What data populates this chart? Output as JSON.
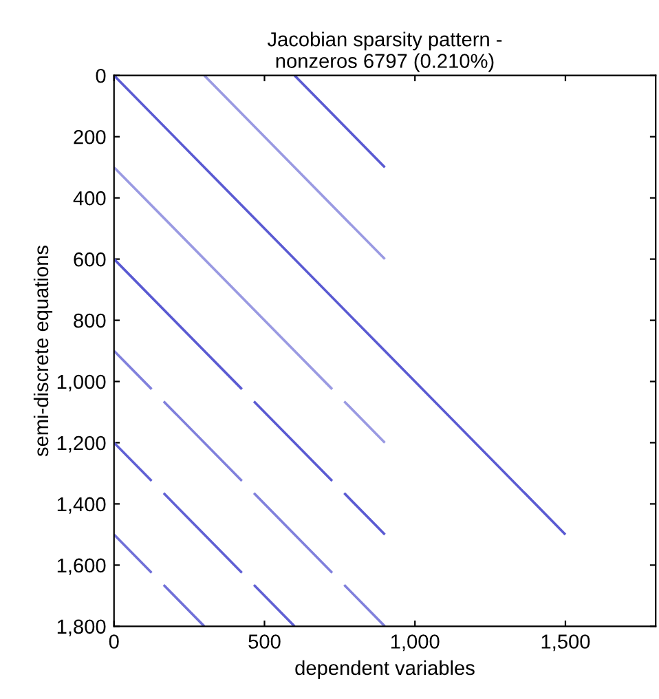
{
  "chart_data": {
    "type": "line",
    "title": "Jacobian sparsity pattern -\nnonzeros 6797 (0.210%)",
    "xlabel": "dependent variables",
    "ylabel": "semi-discrete equations",
    "xlim": [
      0,
      1800
    ],
    "ylim": [
      1800,
      0
    ],
    "xticks": [
      0,
      500,
      {
        "value": 1000,
        "label": "1,000"
      },
      {
        "value": 1500,
        "label": "1,500"
      }
    ],
    "yticks": [
      0,
      200,
      400,
      600,
      800,
      {
        "value": 1000,
        "label": "1,000"
      },
      {
        "value": 1200,
        "label": "1,200"
      },
      {
        "value": 1400,
        "label": "1,400"
      },
      {
        "value": 1600,
        "label": "1,600"
      },
      {
        "value": 1800,
        "label": "1,800"
      }
    ],
    "grid": false,
    "legend": false,
    "marker": "none",
    "line_style": "solid",
    "series": [
      {
        "color": "#5a5ad2",
        "x": [
          0,
          1500
        ],
        "values": [
          0,
          1500
        ]
      },
      {
        "color": "#9a9ae2",
        "x": [
          300,
          900
        ],
        "values": [
          0,
          600
        ]
      },
      {
        "color": "#5a5ad2",
        "x": [
          600,
          900
        ],
        "values": [
          0,
          300
        ]
      },
      {
        "color": "#9a9ae2",
        "x": [
          0,
          725
        ],
        "values": [
          300,
          1025
        ]
      },
      {
        "color": "#9a9ae2",
        "x": [
          765,
          900
        ],
        "values": [
          1065,
          1200
        ]
      },
      {
        "color": "#5a5ad2",
        "x": [
          0,
          425
        ],
        "values": [
          600,
          1025
        ]
      },
      {
        "color": "#5a5ad2",
        "x": [
          465,
          725
        ],
        "values": [
          1065,
          1325
        ]
      },
      {
        "color": "#5a5ad2",
        "x": [
          765,
          900
        ],
        "values": [
          1365,
          1500
        ]
      },
      {
        "color": "#8080dc",
        "x": [
          0,
          125
        ],
        "values": [
          900,
          1025
        ]
      },
      {
        "color": "#8080dc",
        "x": [
          165,
          425
        ],
        "values": [
          1065,
          1325
        ]
      },
      {
        "color": "#8080dc",
        "x": [
          465,
          725
        ],
        "values": [
          1365,
          1625
        ]
      },
      {
        "color": "#8080dc",
        "x": [
          765,
          900
        ],
        "values": [
          1665,
          1800
        ]
      },
      {
        "color": "#6060d4",
        "x": [
          0,
          125
        ],
        "values": [
          1200,
          1325
        ]
      },
      {
        "color": "#6060d4",
        "x": [
          165,
          425
        ],
        "values": [
          1365,
          1625
        ]
      },
      {
        "color": "#6060d4",
        "x": [
          465,
          600
        ],
        "values": [
          1665,
          1800
        ]
      },
      {
        "color": "#7070d8",
        "x": [
          0,
          125
        ],
        "values": [
          1500,
          1625
        ]
      },
      {
        "color": "#7070d8",
        "x": [
          165,
          300
        ],
        "values": [
          1665,
          1800
        ]
      }
    ]
  }
}
